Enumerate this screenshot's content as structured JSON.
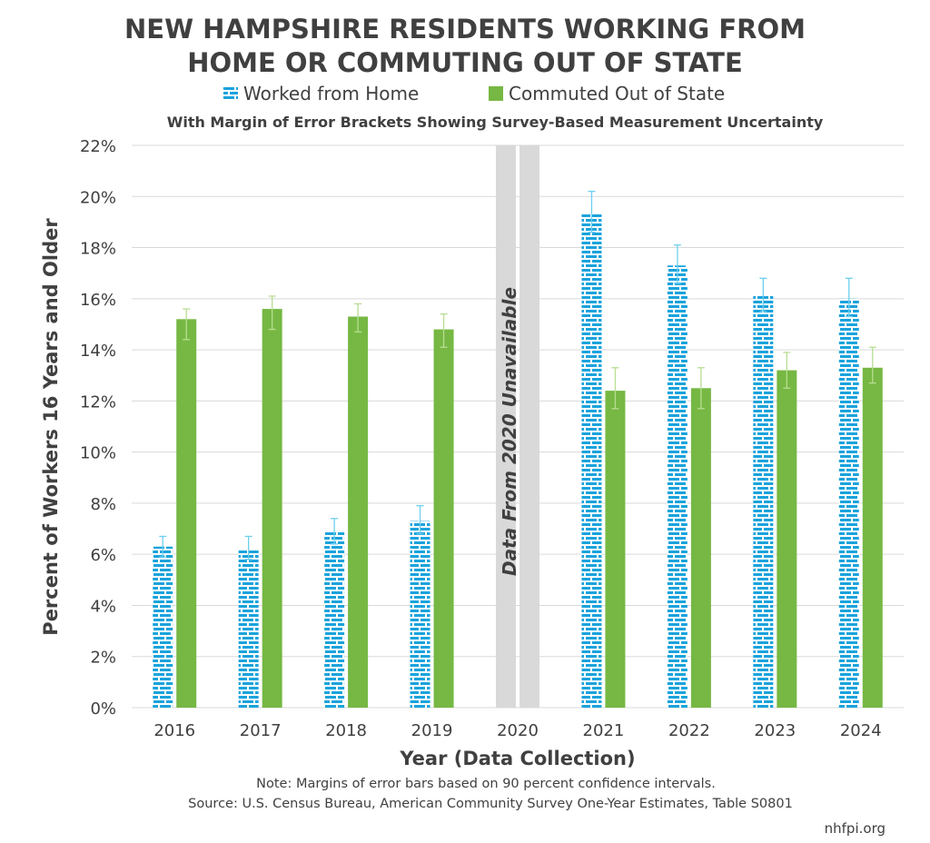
{
  "chart_data": {
    "type": "bar",
    "title_lines": [
      "NEW HAMPSHIRE RESIDENTS WORKING FROM",
      "HOME OR COMMUTING OUT OF STATE"
    ],
    "subtitle": "With Margin of Error Brackets Showing Survey-Based Measurement Uncertainty",
    "xlabel": "Year (Data Collection)",
    "ylabel": "Percent of Workers 16 Years and Older",
    "ylim": [
      0,
      22
    ],
    "ytick_step": 2,
    "yticks": [
      "0%",
      "2%",
      "4%",
      "6%",
      "8%",
      "10%",
      "12%",
      "14%",
      "16%",
      "18%",
      "20%",
      "22%"
    ],
    "categories": [
      "2016",
      "2017",
      "2018",
      "2019",
      "2020",
      "2021",
      "2022",
      "2023",
      "2024"
    ],
    "grid": true,
    "legend_position": "top",
    "gap_category": "2020",
    "gap_label": "Data From 2020 Unavailable",
    "series": [
      {
        "name": "Worked from Home",
        "color": "#1aa3dc",
        "pattern": "brick",
        "values": [
          6.3,
          6.2,
          6.9,
          7.3,
          null,
          19.3,
          17.3,
          16.1,
          16.0
        ],
        "error_low": [
          5.9,
          5.8,
          6.4,
          6.8,
          null,
          18.6,
          16.6,
          15.5,
          15.3
        ],
        "error_high": [
          6.7,
          6.7,
          7.4,
          7.9,
          null,
          20.2,
          18.1,
          16.8,
          16.8
        ]
      },
      {
        "name": "Commuted Out of State",
        "color": "#76b843",
        "pattern": "solid",
        "values": [
          15.2,
          15.6,
          15.3,
          14.8,
          null,
          12.4,
          12.5,
          13.2,
          13.3
        ],
        "error_low": [
          14.4,
          14.8,
          14.7,
          14.1,
          null,
          11.7,
          11.7,
          12.5,
          12.7
        ],
        "error_high": [
          15.6,
          16.1,
          15.8,
          15.4,
          null,
          13.3,
          13.3,
          13.9,
          14.1
        ]
      }
    ],
    "notes": [
      "Note: Margins of error bars based on 90 percent confidence intervals.",
      "Source: U.S. Census Bureau, American Community Survey One-Year Estimates, Table S0801"
    ],
    "credit": "nhfpi.org"
  },
  "colors": {
    "text": "#404040",
    "grid": "#d9d9d9",
    "gap_band": "#d9d9d9"
  }
}
